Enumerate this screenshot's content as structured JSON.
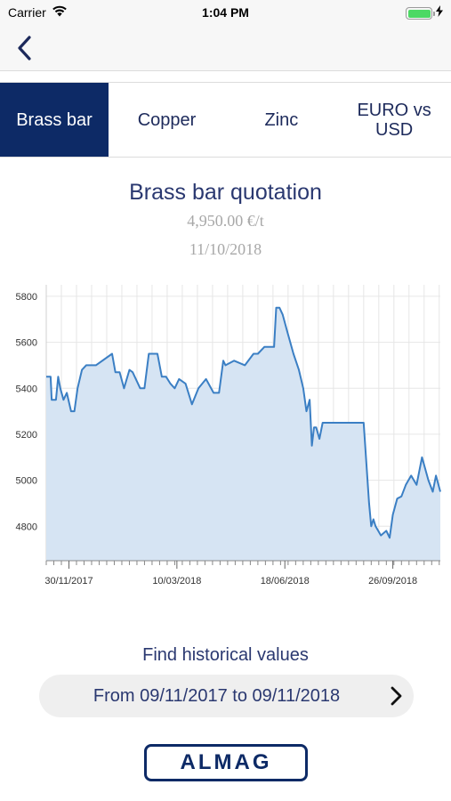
{
  "status_bar": {
    "carrier": "Carrier",
    "time": "1:04 PM",
    "battery_level": 1.0,
    "icons": [
      "wifi-icon",
      "battery-icon",
      "charging-icon"
    ]
  },
  "nav": {
    "back_icon": "chevron-left-icon"
  },
  "tabs": [
    {
      "label": "Brass bar",
      "active": true
    },
    {
      "label": "Copper",
      "active": false
    },
    {
      "label": "Zinc",
      "active": false
    },
    {
      "label": "EURO vs USD",
      "active": false
    }
  ],
  "quotation": {
    "title": "Brass bar quotation",
    "price": "4,950.00 €/t",
    "date": "11/10/2018"
  },
  "chart_data": {
    "type": "area",
    "title": "",
    "xlabel": "",
    "ylabel": "",
    "x_tick_labels": [
      "30/11/2017",
      "10/03/2018",
      "18/06/2018",
      "26/09/2018"
    ],
    "y_tick_labels": [
      "4800",
      "5000",
      "5200",
      "5400",
      "5600",
      "5800"
    ],
    "ylim": [
      4650,
      5850
    ],
    "x_range": [
      "2017-11-09",
      "2018-11-09"
    ],
    "line_color": "#3b7fc4",
    "fill_color": "#d6e4f3",
    "grid": true,
    "series": [
      {
        "name": "",
        "x": [
          "2017-11-09",
          "2017-11-13",
          "2017-11-14",
          "2017-11-18",
          "2017-11-20",
          "2017-11-22",
          "2017-11-25",
          "2017-11-28",
          "2017-12-02",
          "2017-12-05",
          "2017-12-08",
          "2017-12-12",
          "2017-12-16",
          "2017-12-21",
          "2017-12-25",
          "2018-01-09",
          "2018-01-12",
          "2018-01-16",
          "2018-01-20",
          "2018-01-25",
          "2018-01-28",
          "2018-02-04",
          "2018-02-08",
          "2018-02-12",
          "2018-02-16",
          "2018-02-20",
          "2018-02-24",
          "2018-02-28",
          "2018-03-04",
          "2018-03-08",
          "2018-03-12",
          "2018-03-18",
          "2018-03-24",
          "2018-03-30",
          "2018-04-06",
          "2018-04-13",
          "2018-04-18",
          "2018-04-22",
          "2018-04-24",
          "2018-05-02",
          "2018-05-12",
          "2018-05-20",
          "2018-05-24",
          "2018-05-30",
          "2018-06-08",
          "2018-06-10",
          "2018-06-13",
          "2018-06-16",
          "2018-06-20",
          "2018-06-26",
          "2018-07-01",
          "2018-07-05",
          "2018-07-08",
          "2018-07-11",
          "2018-07-13",
          "2018-07-15",
          "2018-07-17",
          "2018-07-20",
          "2018-07-23",
          "2018-08-05",
          "2018-08-15",
          "2018-08-30",
          "2018-09-04",
          "2018-09-06",
          "2018-09-08",
          "2018-09-10",
          "2018-09-15",
          "2018-09-20",
          "2018-09-23",
          "2018-09-26",
          "2018-09-30",
          "2018-10-04",
          "2018-10-08",
          "2018-10-13",
          "2018-10-18",
          "2018-10-23",
          "2018-10-29",
          "2018-11-02",
          "2018-11-05",
          "2018-11-09"
        ],
        "values": [
          5450,
          5450,
          5350,
          5350,
          5450,
          5400,
          5350,
          5380,
          5300,
          5300,
          5400,
          5480,
          5500,
          5500,
          5500,
          5550,
          5470,
          5470,
          5400,
          5480,
          5470,
          5400,
          5400,
          5550,
          5550,
          5550,
          5450,
          5450,
          5420,
          5400,
          5440,
          5420,
          5330,
          5400,
          5440,
          5380,
          5380,
          5520,
          5500,
          5520,
          5500,
          5550,
          5550,
          5580,
          5580,
          5750,
          5750,
          5720,
          5650,
          5550,
          5480,
          5400,
          5300,
          5350,
          5150,
          5230,
          5230,
          5180,
          5250,
          5250,
          5250,
          5250,
          4900,
          4800,
          4830,
          4800,
          4760,
          4780,
          4750,
          4850,
          4920,
          4930,
          4980,
          5020,
          4980,
          5100,
          5000,
          4950,
          5020,
          4950
        ]
      }
    ]
  },
  "history": {
    "label": "Find historical values",
    "range": "From 09/11/2017 to 09/11/2018",
    "chevron_icon": "chevron-right-icon"
  },
  "logo": {
    "text": "ALMAG"
  }
}
